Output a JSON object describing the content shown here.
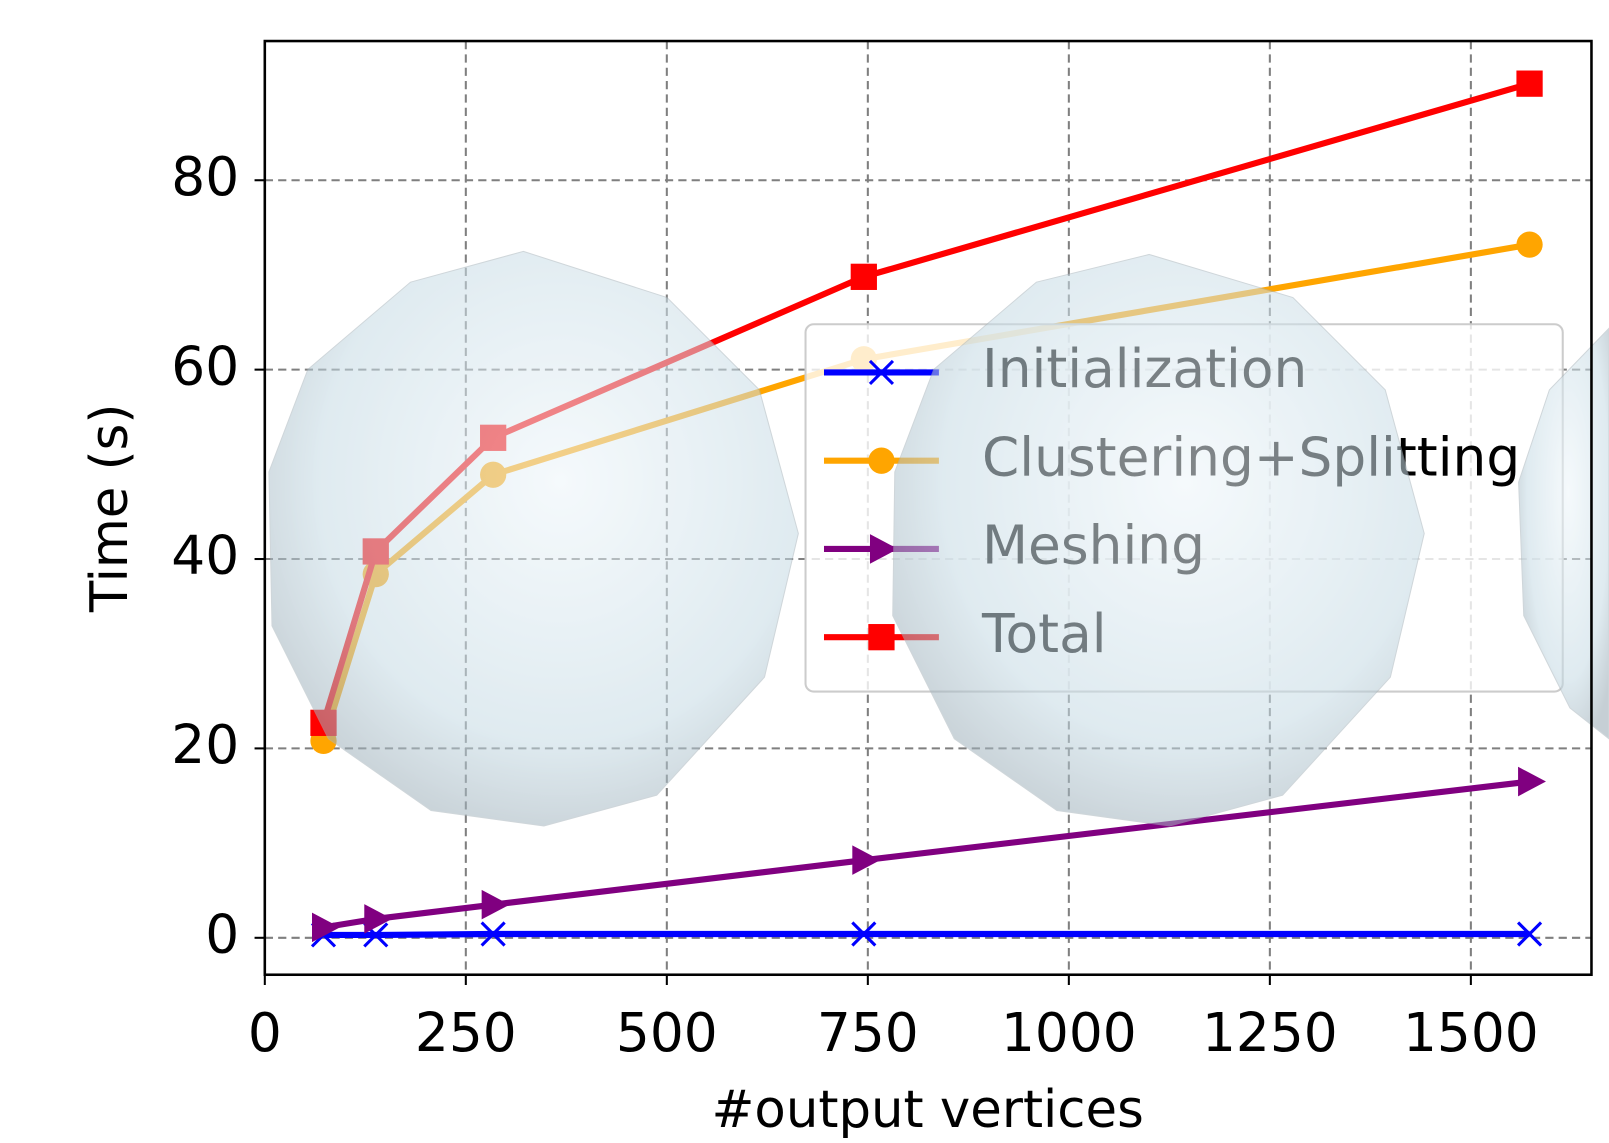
{
  "chart_data": {
    "type": "line",
    "x_label": "#output vertices",
    "y_label": "Time (s)",
    "x": [
      73,
      138,
      284,
      745,
      1573
    ],
    "series": [
      {
        "name": "Initialization",
        "color": "#0000ff",
        "marker": "x",
        "values": [
          0.3,
          0.3,
          0.4,
          0.4,
          0.4
        ]
      },
      {
        "name": "Clustering+Splitting",
        "color": "#ffa500",
        "marker": "o",
        "values": [
          20.8,
          38.4,
          48.9,
          61.1,
          73.2
        ]
      },
      {
        "name": "Meshing",
        "color": "#800080",
        "marker": ">",
        "values": [
          1.1,
          2.0,
          3.5,
          8.2,
          16.5
        ]
      },
      {
        "name": "Total",
        "color": "#ff0000",
        "marker": "s",
        "values": [
          22.7,
          40.8,
          52.8,
          69.8,
          90.2
        ]
      }
    ],
    "xlim": [
      0,
      1650
    ],
    "ylim": [
      -3.9,
      94.7
    ],
    "xticks": [
      0,
      250,
      500,
      750,
      1000,
      1250,
      1500
    ],
    "yticks": [
      0,
      20,
      40,
      60,
      80
    ],
    "grid": true,
    "legend": "center right"
  }
}
